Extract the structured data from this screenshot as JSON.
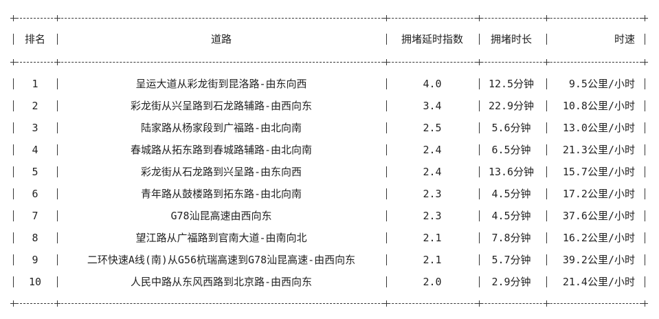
{
  "table": {
    "headers": [
      "排名",
      "道路",
      "拥堵延时指数",
      "拥堵时长",
      "时速"
    ],
    "rows": [
      [
        "1",
        "呈运大道从彩龙街到昆洛路-由东向西",
        "4.0",
        "12.5分钟",
        "9.5公里/小时"
      ],
      [
        "2",
        "彩龙街从兴呈路到石龙路辅路-由西向东",
        "3.4",
        "22.9分钟",
        "10.8公里/小时"
      ],
      [
        "3",
        "陆家路从杨家段到广福路-由北向南",
        "2.5",
        "5.6分钟",
        "13.0公里/小时"
      ],
      [
        "4",
        "春城路从拓东路到春城路辅路-由北向南",
        "2.4",
        "6.5分钟",
        "21.3公里/小时"
      ],
      [
        "5",
        "彩龙街从石龙路到兴呈路-由东向西",
        "2.4",
        "13.6分钟",
        "15.7公里/小时"
      ],
      [
        "6",
        "青年路从鼓楼路到拓东路-由北向南",
        "2.3",
        "4.5分钟",
        "17.2公里/小时"
      ],
      [
        "7",
        "G78汕昆高速由西向东",
        "2.3",
        "4.5分钟",
        "37.6公里/小时"
      ],
      [
        "8",
        "望江路从广福路到官南大道-由南向北",
        "2.1",
        "7.8分钟",
        "16.2公里/小时"
      ],
      [
        "9",
        "二环快速A线(南)从G56杭瑞高速到G78汕昆高速-由西向东",
        "2.1",
        "5.7分钟",
        "39.2公里/小时"
      ],
      [
        "10",
        "人民中路从东风西路到北京路-由西向东",
        "2.0",
        "2.9分钟",
        "21.4公里/小时"
      ]
    ]
  }
}
